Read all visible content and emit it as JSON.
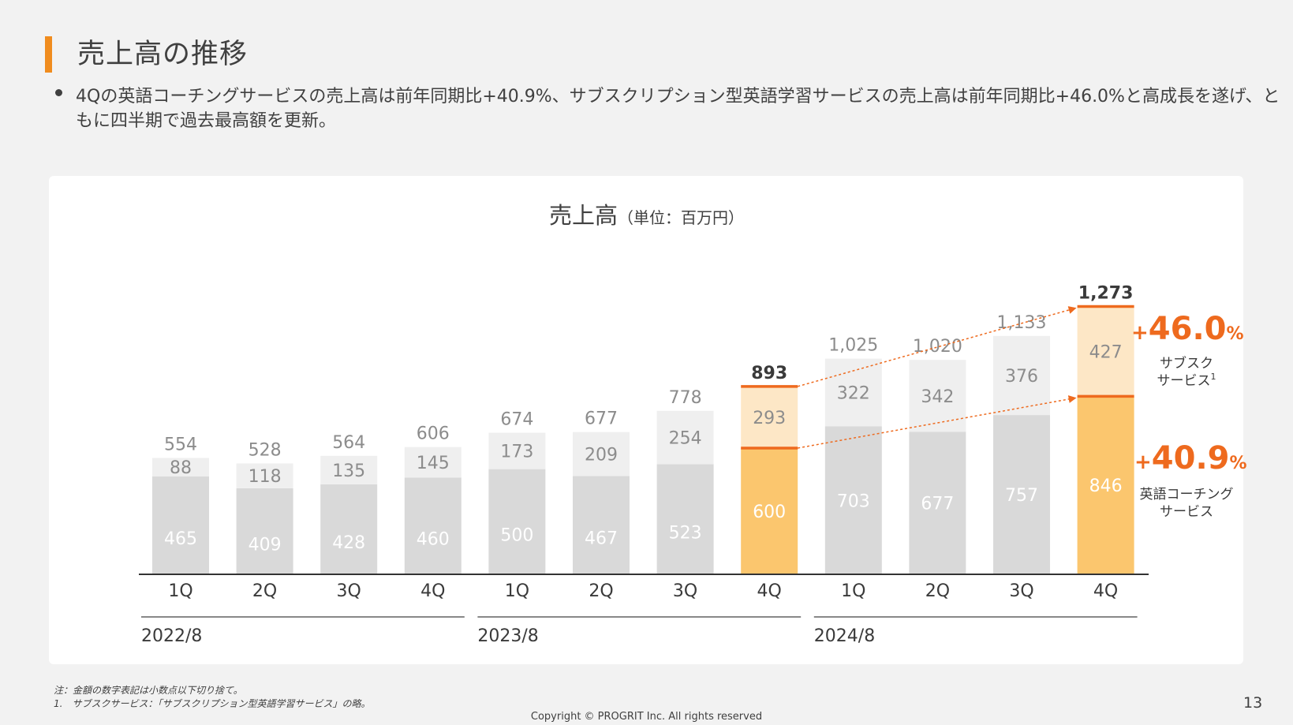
{
  "page": {
    "title": "売上高の推移",
    "bullet": "4Qの英語コーチングサービスの売上高は前年同期比+40.9%、サブスクリプション型英語学習サービスの売上高は前年同期比+46.0%と高成長を遂げ、ともに四半期で過去最高額を更新。",
    "footnote_1": "注：金額の数字表記は小数点以下切り捨て。",
    "footnote_2": "1.　サブスクサービス：「サブスクリプション型英語学習サービス」の略。",
    "copyright": "Copyright © PROGRIT Inc. All rights reserved",
    "page_number": "13"
  },
  "chart_data": {
    "type": "bar",
    "stacked": true,
    "title": "売上高",
    "title_unit": "（単位：百万円）",
    "categories": [
      "1Q",
      "2Q",
      "3Q",
      "4Q",
      "1Q",
      "2Q",
      "3Q",
      "4Q",
      "1Q",
      "2Q",
      "3Q",
      "4Q"
    ],
    "fiscal_years": [
      {
        "label": "2022/8",
        "quarters": [
          0,
          1,
          2,
          3
        ]
      },
      {
        "label": "2023/8",
        "quarters": [
          4,
          5,
          6,
          7
        ]
      },
      {
        "label": "2024/8",
        "quarters": [
          8,
          9,
          10,
          11
        ]
      }
    ],
    "series": [
      {
        "name": "英語コーチングサービス",
        "values": [
          465,
          409,
          428,
          460,
          500,
          467,
          523,
          600,
          703,
          677,
          757,
          846
        ]
      },
      {
        "name": "サブスクサービス",
        "values": [
          88,
          118,
          135,
          145,
          173,
          209,
          254,
          293,
          322,
          342,
          376,
          427
        ]
      }
    ],
    "totals": [
      "554",
      "528",
      "564",
      "606",
      "674",
      "677",
      "778",
      "893",
      "1,025",
      "1,020",
      "1,133",
      "1,273"
    ],
    "highlight_indices": [
      7,
      11
    ],
    "growth": [
      {
        "value": "46.0",
        "plus": "+",
        "unit": "%",
        "label_line1": "サブスク",
        "label_line2": "サービス",
        "superscript": "1"
      },
      {
        "value": "40.9",
        "plus": "+",
        "unit": "%",
        "label_line1": "英語コーチング",
        "label_line2": "サービス"
      }
    ],
    "colors": {
      "coaching_gray": "#d9d9d9",
      "subscription_gray": "#efefef",
      "coaching_highlight": "#fbc66e",
      "subscription_highlight": "#fde7c6",
      "accent": "#ee6a1e",
      "gray_label": "#8c8c8c",
      "white_label": "#ffffff",
      "dark_label": "#3a3a3a"
    }
  }
}
